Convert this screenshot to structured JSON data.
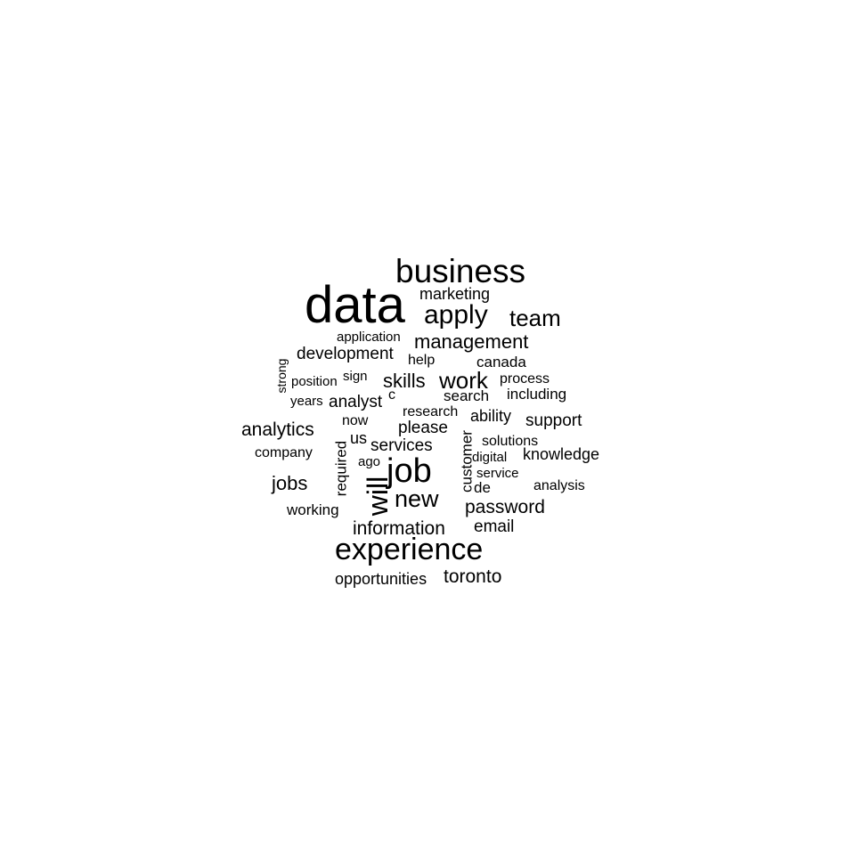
{
  "text_color": "#000000",
  "background": "#ffffff",
  "words": [
    "data",
    "business",
    "experience",
    "job",
    "apply",
    "team",
    "will",
    "new",
    "work",
    "management",
    "skills",
    "analytics",
    "jobs",
    "password",
    "information",
    "toronto",
    "development",
    "marketing",
    "please",
    "services",
    "support",
    "knowledge",
    "email",
    "opportunities",
    "analyst",
    "search",
    "including",
    "ability",
    "research",
    "working",
    "solutions",
    "canada",
    "process",
    "application",
    "help",
    "us",
    "company",
    "analysis",
    "customer",
    "required",
    "de",
    "service",
    "digital",
    "now",
    "years",
    "position",
    "sign",
    "ago",
    "c",
    "strong"
  ]
}
